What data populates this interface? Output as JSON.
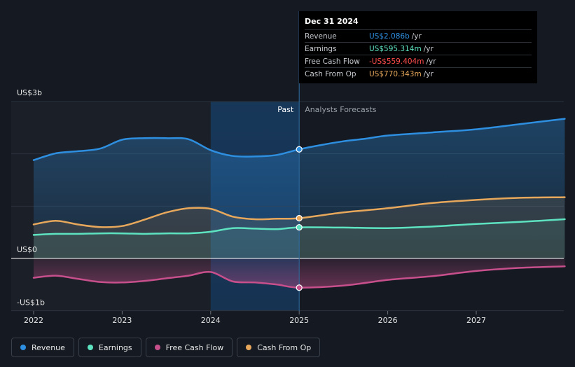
{
  "chart_data": {
    "type": "area",
    "x_ticks": [
      "2022",
      "2023",
      "2024",
      "2025",
      "2026",
      "2027"
    ],
    "x_range": [
      2021.75,
      2027.98
    ],
    "y_range": [
      -1.0,
      3.0
    ],
    "y_label_top": "US$3b",
    "y_label_zero": "US$0",
    "y_label_bottom": "-US$1b",
    "past_label": "Past",
    "forecast_label": "Analysts Forecasts",
    "past_end": 2025.0,
    "highlight_start": 2024.0,
    "series": [
      {
        "name": "Revenue",
        "color": "#2e8fe0",
        "values": [
          [
            2022.0,
            1.88
          ],
          [
            2022.25,
            2.01
          ],
          [
            2022.5,
            2.05
          ],
          [
            2022.75,
            2.1
          ],
          [
            2023.0,
            2.27
          ],
          [
            2023.25,
            2.3
          ],
          [
            2023.5,
            2.3
          ],
          [
            2023.75,
            2.28
          ],
          [
            2024.0,
            2.07
          ],
          [
            2024.25,
            1.96
          ],
          [
            2024.5,
            1.95
          ],
          [
            2024.75,
            1.98
          ],
          [
            2025.0,
            2.086
          ],
          [
            2025.25,
            2.17
          ],
          [
            2025.5,
            2.24
          ],
          [
            2025.75,
            2.29
          ],
          [
            2026.0,
            2.35
          ],
          [
            2026.5,
            2.41
          ],
          [
            2027.0,
            2.47
          ],
          [
            2027.5,
            2.57
          ],
          [
            2028.0,
            2.67
          ]
        ]
      },
      {
        "name": "Earnings",
        "color": "#5ee3c1",
        "values": [
          [
            2022.0,
            0.45
          ],
          [
            2022.25,
            0.47
          ],
          [
            2022.5,
            0.47
          ],
          [
            2022.75,
            0.48
          ],
          [
            2023.0,
            0.48
          ],
          [
            2023.25,
            0.47
          ],
          [
            2023.5,
            0.48
          ],
          [
            2023.75,
            0.48
          ],
          [
            2024.0,
            0.51
          ],
          [
            2024.25,
            0.58
          ],
          [
            2024.5,
            0.57
          ],
          [
            2024.75,
            0.56
          ],
          [
            2025.0,
            0.595
          ],
          [
            2025.5,
            0.59
          ],
          [
            2026.0,
            0.58
          ],
          [
            2026.5,
            0.61
          ],
          [
            2027.0,
            0.66
          ],
          [
            2027.5,
            0.7
          ],
          [
            2028.0,
            0.75
          ]
        ]
      },
      {
        "name": "Free Cash Flow",
        "color": "#c64f8c",
        "values": [
          [
            2022.0,
            -0.37
          ],
          [
            2022.25,
            -0.33
          ],
          [
            2022.5,
            -0.39
          ],
          [
            2022.75,
            -0.45
          ],
          [
            2023.0,
            -0.46
          ],
          [
            2023.25,
            -0.43
          ],
          [
            2023.5,
            -0.38
          ],
          [
            2023.75,
            -0.33
          ],
          [
            2024.0,
            -0.26
          ],
          [
            2024.25,
            -0.44
          ],
          [
            2024.5,
            -0.46
          ],
          [
            2024.75,
            -0.5
          ],
          [
            2025.0,
            -0.559
          ],
          [
            2025.5,
            -0.52
          ],
          [
            2026.0,
            -0.41
          ],
          [
            2026.5,
            -0.34
          ],
          [
            2027.0,
            -0.24
          ],
          [
            2027.5,
            -0.18
          ],
          [
            2028.0,
            -0.15
          ]
        ]
      },
      {
        "name": "Cash From Op",
        "color": "#e8a85c",
        "values": [
          [
            2022.0,
            0.65
          ],
          [
            2022.25,
            0.72
          ],
          [
            2022.5,
            0.65
          ],
          [
            2022.75,
            0.6
          ],
          [
            2023.0,
            0.62
          ],
          [
            2023.25,
            0.74
          ],
          [
            2023.5,
            0.88
          ],
          [
            2023.75,
            0.96
          ],
          [
            2024.0,
            0.95
          ],
          [
            2024.25,
            0.8
          ],
          [
            2024.5,
            0.75
          ],
          [
            2024.75,
            0.76
          ],
          [
            2025.0,
            0.77
          ],
          [
            2025.5,
            0.88
          ],
          [
            2026.0,
            0.96
          ],
          [
            2026.5,
            1.06
          ],
          [
            2027.0,
            1.12
          ],
          [
            2027.5,
            1.16
          ],
          [
            2028.0,
            1.17
          ]
        ]
      }
    ]
  },
  "tooltip": {
    "date": "Dec 31 2024",
    "rows": [
      {
        "name": "Revenue",
        "value": "US$2.086b",
        "unit": "/yr",
        "color": "#2e8fe0"
      },
      {
        "name": "Earnings",
        "value": "US$595.314m",
        "unit": "/yr",
        "color": "#5ee3c1"
      },
      {
        "name": "Free Cash Flow",
        "value": "-US$559.404m",
        "unit": "/yr",
        "color": "#ff4d4d"
      },
      {
        "name": "Cash From Op",
        "value": "US$770.343m",
        "unit": "/yr",
        "color": "#e8a85c"
      }
    ]
  },
  "legend": [
    {
      "label": "Revenue",
      "color": "#2e8fe0"
    },
    {
      "label": "Earnings",
      "color": "#5ee3c1"
    },
    {
      "label": "Free Cash Flow",
      "color": "#c64f8c"
    },
    {
      "label": "Cash From Op",
      "color": "#e8a85c"
    }
  ]
}
